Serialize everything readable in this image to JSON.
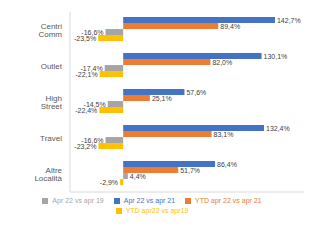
{
  "chart_data": {
    "type": "bar",
    "orientation": "horizontal",
    "categories": [
      "Centri Comm",
      "Outlet",
      "High Street",
      "Travel",
      "Altre Località"
    ],
    "series": [
      {
        "name": "Apr 22 vs apr 21",
        "color": "#4472C4",
        "values": [
          142.7,
          130.1,
          57.6,
          132.4,
          86.4
        ],
        "value_labels": [
          "142,7%",
          "130,1%",
          "57,6%",
          "132,4%",
          "86,4%"
        ]
      },
      {
        "name": "YTD apr 22 vs apr 21",
        "color": "#ED7D31",
        "values": [
          89.4,
          82.0,
          25.1,
          83.1,
          51.7
        ],
        "value_labels": [
          "89,4%",
          "82,0%",
          "25,1%",
          "83,1%",
          "51,7%"
        ]
      },
      {
        "name": "Apr 22 vs apr 19",
        "color": "#A5A5A5",
        "values": [
          -16.6,
          -17.4,
          -14.5,
          -16.6,
          4.4
        ],
        "value_labels": [
          "-16,6%",
          "-17,4%",
          "-14,5%",
          "-16,6%",
          "4,4%"
        ]
      },
      {
        "name": "YTD apr22 vs apr19",
        "color": "#FFC000",
        "values": [
          -23.5,
          -22.1,
          -22.4,
          -23.2,
          -2.9
        ],
        "value_labels": [
          "-23,5%",
          "-22,1%",
          "-22,4%",
          "-23,2%",
          "-2,9%"
        ]
      }
    ],
    "xlim": [
      -50,
      170
    ],
    "data_labels": true,
    "tick_labels": "y",
    "legend": "bottom",
    "grid": false
  }
}
